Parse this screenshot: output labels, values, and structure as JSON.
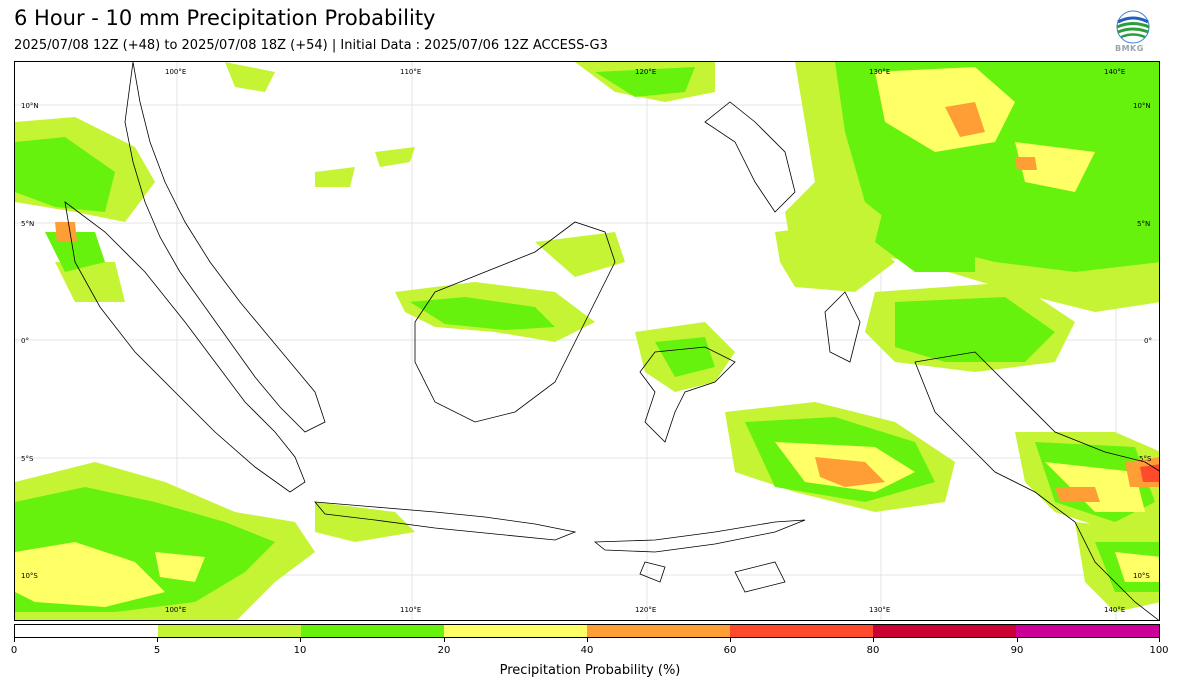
{
  "header": {
    "title": "6 Hour - 10 mm Precipitation Probability",
    "subtitle": "2025/07/08 12Z (+48) to 2025/07/08 18Z (+54) | Initial Data : 2025/07/06 12Z ACCESS-G3",
    "logo_text": "BMKG"
  },
  "map": {
    "lon_labels_top": [
      "100°E",
      "110°E",
      "120°E",
      "130°E",
      "140°E"
    ],
    "lon_labels_bottom": [
      "100°E",
      "110°E",
      "120°E",
      "130°E",
      "140°E"
    ],
    "lat_labels_left": [
      "10°N",
      "5°N",
      "0°",
      "5°S",
      "10°S"
    ],
    "lat_labels_right": [
      "10°N",
      "5°N",
      "0°",
      "5°S",
      "10°S"
    ],
    "extent": {
      "lon_min": 94,
      "lon_max": 143,
      "lat_min": -11.5,
      "lat_max": 12.3
    }
  },
  "colorbar": {
    "label": "Precipitation Probability (%)",
    "ticks": [
      "0",
      "5",
      "10",
      "20",
      "40",
      "60",
      "80",
      "90",
      "100"
    ],
    "colors": [
      "#ffffff",
      "#c5f435",
      "#66f20d",
      "#ffff66",
      "#ff9e35",
      "#ff4a2c",
      "#cc0033",
      "#cc0099"
    ]
  }
}
